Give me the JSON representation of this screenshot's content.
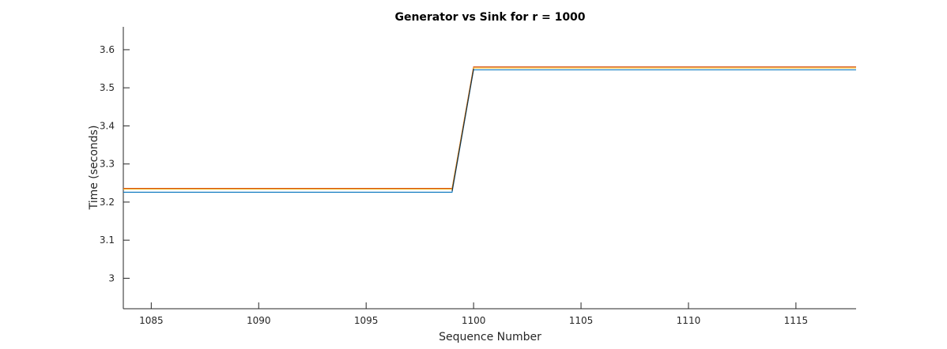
{
  "chart_data": {
    "type": "line",
    "title": "Generator vs Sink for r = 1000",
    "xlabel": "Sequence Number",
    "ylabel": "Time (seconds)",
    "xlim": [
      1083.7,
      1117.8
    ],
    "ylim": [
      2.92,
      3.66
    ],
    "xticks": [
      1085,
      1090,
      1095,
      1100,
      1105,
      1110,
      1115
    ],
    "yticks": [
      3,
      3.1,
      3.2,
      3.3,
      3.4,
      3.5,
      3.6
    ],
    "xtick_labels": [
      "1085",
      "1090",
      "1095",
      "1100",
      "1105",
      "1110",
      "1115"
    ],
    "ytick_labels": [
      "3",
      "3.1",
      "3.2",
      "3.3",
      "3.4",
      "3.5",
      "3.6"
    ],
    "grid": false,
    "series": [
      {
        "color": "#0072BD",
        "x": [
          1083.7,
          1099,
          1100,
          1117.8
        ],
        "y": [
          3.226,
          3.226,
          3.547,
          3.547
        ]
      },
      {
        "color": "#D95319",
        "x": [
          1083.7,
          1099,
          1100,
          1117.8
        ],
        "y": [
          3.236,
          3.236,
          3.555,
          3.555
        ]
      },
      {
        "color": "#EDB120",
        "x": [
          1083.7,
          1099,
          1100,
          1117.8
        ],
        "y": [
          3.234,
          3.234,
          3.552,
          3.552
        ]
      },
      {
        "color": "#2B2B2B",
        "x": [
          1099,
          1100
        ],
        "y": [
          3.229,
          3.55
        ]
      }
    ]
  }
}
